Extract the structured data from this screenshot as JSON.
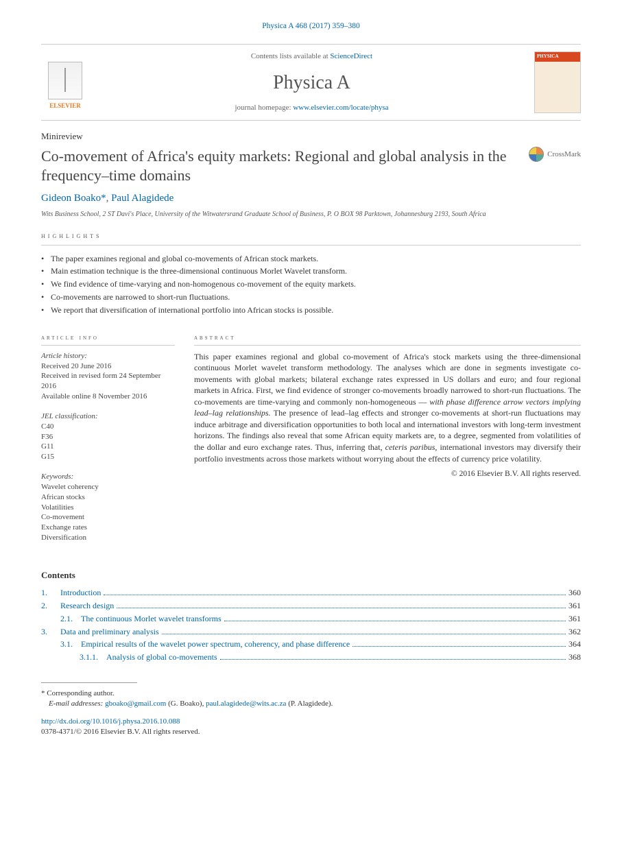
{
  "citation": "Physica A 468 (2017) 359–380",
  "masthead": {
    "availableText": "Contents lists available at ",
    "availableLink": "ScienceDirect",
    "journal": "Physica A",
    "homeText": "journal homepage: ",
    "homeLink": "www.elsevier.com/locate/physa",
    "publisherName": "ELSEVIER",
    "coverLabel": "PHYSICA"
  },
  "articleType": "Minireview",
  "title": "Co-movement of Africa's equity markets: Regional and global analysis in the frequency–time domains",
  "crossmark": "CrossMark",
  "authors": {
    "a1": "Gideon Boako",
    "a1mark": "*",
    "sep": ", ",
    "a2": "Paul Alagidede"
  },
  "affiliation": "Wits Business School, 2 ST Davi's Place, University of the Witwatersrand Graduate School of Business, P. O BOX 98 Parktown, Johannesburg 2193, South Africa",
  "highlightsHead": "HIGHLIGHTS",
  "highlights": [
    "The paper examines regional and global co-movements of African stock markets.",
    "Main estimation technique is the three-dimensional continuous Morlet Wavelet transform.",
    "We find evidence of time-varying and non-homogenous co-movement of the equity markets.",
    "Co-movements are narrowed to short-run fluctuations.",
    "We report that diversification of international portfolio into African stocks is possible."
  ],
  "info": {
    "headLeft": "ARTICLE INFO",
    "headRight": "ABSTRACT",
    "historyLabel": "Article history:",
    "history": [
      "Received 20 June 2016",
      "Received in revised form 24 September 2016",
      "Available online 8 November 2016"
    ],
    "jelLabel": "JEL classification:",
    "jel": [
      "C40",
      "F36",
      "G11",
      "G15"
    ],
    "kwLabel": "Keywords:",
    "keywords": [
      "Wavelet coherency",
      "African stocks",
      "Volatilities",
      "Co-movement",
      "Exchange rates",
      "Diversification"
    ]
  },
  "abstract": {
    "p1": "This paper examines regional and global co-movement of Africa's stock markets using the three-dimensional continuous Morlet wavelet transform methodology. The analyses which are done in segments investigate co-movements with global markets; bilateral exchange rates expressed in US dollars and euro; and four regional markets in Africa. First, we find evidence of stronger co-movements broadly narrowed to short-run fluctuations. The co-movements are time-varying and commonly non-homogeneous — ",
    "p1italic": "with phase difference arrow vectors implying lead–lag relationships.",
    "p2": " The presence of lead–lag effects and stronger co-movements at short-run fluctuations may induce arbitrage and diversification opportunities to both local and international investors with long-term investment horizons. The findings also reveal that some African equity markets are, to a degree, segmented from volatilities of the dollar and euro exchange rates. Thus, inferring that, ",
    "p2italic": "ceteris paribus,",
    "p3": " international investors may diversify their portfolio investments across those markets without worrying about the effects of currency price volatility.",
    "copyright": "© 2016 Elsevier B.V. All rights reserved."
  },
  "contentsHead": "Contents",
  "toc": [
    {
      "level": 1,
      "num": "1.",
      "title": "Introduction",
      "page": "360"
    },
    {
      "level": 1,
      "num": "2.",
      "title": "Research design",
      "page": "361"
    },
    {
      "level": 2,
      "num": "2.1.",
      "title": "The continuous Morlet wavelet transforms",
      "page": "361"
    },
    {
      "level": 1,
      "num": "3.",
      "title": "Data and preliminary analysis",
      "page": "362"
    },
    {
      "level": 2,
      "num": "3.1.",
      "title": "Empirical results of the wavelet power spectrum, coherency, and phase difference",
      "page": "364"
    },
    {
      "level": 3,
      "num": "3.1.1.",
      "title": "Analysis of global co-movements",
      "page": "368"
    }
  ],
  "footer": {
    "corrMark": "*",
    "corrLabel": "Corresponding author.",
    "emailLabel": "E-mail addresses:",
    "email1": "gboako@gmail.com",
    "email1name": " (G. Boako), ",
    "email2": "paul.alagidede@wits.ac.za",
    "email2name": " (P. Alagidede).",
    "doi": "http://dx.doi.org/10.1016/j.physa.2016.10.088",
    "issn": "0378-4371/© 2016 Elsevier B.V. All rights reserved."
  }
}
